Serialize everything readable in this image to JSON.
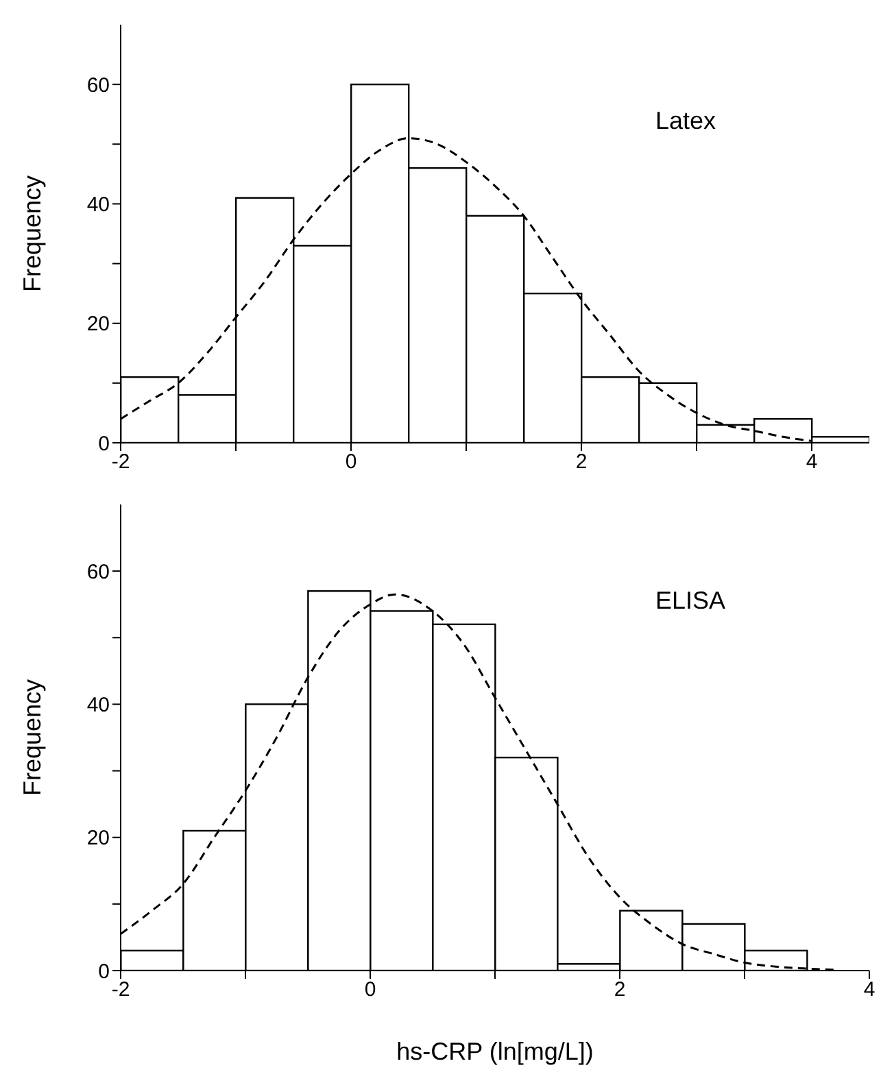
{
  "chart_data": [
    {
      "type": "histogram",
      "ylabel": "Frequency",
      "annotations": [
        "Latex"
      ],
      "bins": [
        -2,
        -1.5,
        -1,
        -0.5,
        0,
        0.5,
        1,
        1.5,
        2,
        2.5,
        3,
        3.5,
        4,
        4.5
      ],
      "values": [
        11,
        8,
        41,
        33,
        60,
        46,
        38,
        25,
        11,
        10,
        3,
        4,
        1
      ],
      "color": "#ffffff",
      "series": [
        {
          "type": "line",
          "color": "#000000",
          "line_style": "dashed",
          "x": [
            -2,
            -1.75,
            -1.5,
            -1.25,
            -1,
            -0.75,
            -0.5,
            -0.25,
            0,
            0.25,
            0.5,
            0.75,
            1,
            1.25,
            1.5,
            1.75,
            2,
            2.25,
            2.5,
            2.75,
            3,
            3.25,
            3.5,
            3.75,
            4
          ],
          "values": [
            4,
            7,
            10,
            15,
            21,
            27,
            34,
            40,
            45,
            49,
            51,
            50,
            47,
            43,
            38,
            31,
            24,
            18,
            12,
            8,
            5,
            3,
            2,
            1,
            0.3
          ]
        }
      ],
      "xlim": [
        -2,
        4.5
      ],
      "xticks": [
        -2,
        {
          "value": -1,
          "label": null
        },
        0,
        {
          "value": 1,
          "label": null
        },
        2,
        {
          "value": 3,
          "label": null
        },
        4
      ],
      "ylim": [
        0,
        70
      ],
      "yticks": [
        0,
        {
          "value": 10,
          "label": null
        },
        20,
        {
          "value": 30,
          "label": null
        },
        40,
        {
          "value": 50,
          "label": null
        },
        60
      ]
    },
    {
      "type": "histogram",
      "ylabel": "Frequency",
      "xlabel": "hs-CRP (ln[mg/L])",
      "annotations": [
        "ELISA"
      ],
      "bins": [
        -2,
        -1.5,
        -1,
        -0.5,
        0,
        0.5,
        1,
        1.5,
        2,
        2.5,
        3,
        3.5
      ],
      "values": [
        3,
        21,
        40,
        57,
        54,
        52,
        32,
        1,
        9,
        7,
        3
      ],
      "color": "#ffffff",
      "series": [
        {
          "type": "line",
          "color": "#000000",
          "line_style": "dashed",
          "x": [
            -2,
            -1.75,
            -1.5,
            -1.25,
            -1,
            -0.75,
            -0.5,
            -0.25,
            0,
            0.2,
            0.5,
            0.75,
            1,
            1.25,
            1.5,
            1.75,
            2,
            2.25,
            2.5,
            2.75,
            3,
            3.25,
            3.5,
            3.75
          ],
          "values": [
            5.5,
            9,
            13,
            20,
            27,
            35,
            44,
            51,
            55,
            56.5,
            54,
            49,
            41,
            33,
            25,
            17,
            11,
            7,
            4,
            2.5,
            1.2,
            0.6,
            0.3,
            0.1
          ]
        }
      ],
      "xlim": [
        -2,
        4
      ],
      "xticks": [
        -2,
        {
          "value": -1,
          "label": null
        },
        0,
        {
          "value": 1,
          "label": null
        },
        2,
        {
          "value": 3,
          "label": null
        },
        4
      ],
      "ylim": [
        0,
        70
      ],
      "yticks": [
        0,
        {
          "value": 10,
          "label": null
        },
        20,
        {
          "value": 30,
          "label": null
        },
        40,
        {
          "value": 50,
          "label": null
        },
        60
      ]
    }
  ]
}
